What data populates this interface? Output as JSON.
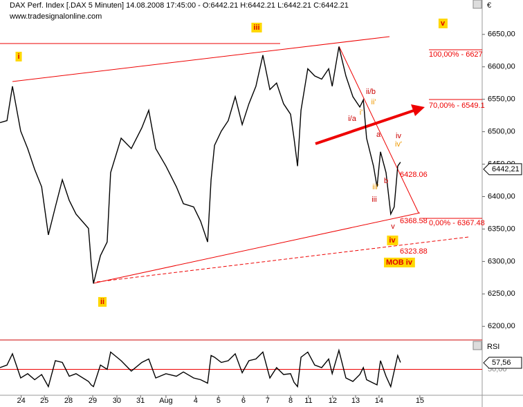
{
  "header": {
    "title": "DAX Perf. Index [.DAX  5 Minuten] 14.08.2008 17:45:00 - O:6442.21 H:6442.21 L:6442.21 C:6442.21",
    "source": "www.tradesignalonline.com",
    "currency": "€"
  },
  "chart_data": [
    {
      "type": "line",
      "color": "#000000",
      "series": [
        {
          "name": "DAX",
          "color": "#000000",
          "x": [
            -0.85,
            -0.57,
            -0.35,
            -0.02,
            0.26,
            0.54,
            0.82,
            1.09,
            1.37,
            1.65,
            1.93,
            2.2,
            2.7,
            2.81,
            2.9,
            3.18,
            3.45,
            3.59,
            4.01,
            4.42,
            4.84,
            5.12,
            5.4,
            5.81,
            6.23,
            6.51,
            6.92,
            7.2,
            7.48,
            7.62,
            7.76,
            8.03,
            8.31,
            8.59,
            8.87,
            9.14,
            9.42,
            9.7,
            9.98,
            10.25,
            10.53,
            10.81,
            10.95,
            11.09,
            11.23,
            11.5,
            11.78,
            12.06,
            12.34,
            12.48,
            12.75,
            13.03,
            13.31,
            13.59,
            13.73,
            13.86,
            14.14,
            14.28,
            14.42,
            14.64,
            14.83,
            14.97,
            15.11,
            15.22
          ],
          "values": [
            6514,
            6517,
            6570,
            6501,
            6474,
            6442,
            6415,
            6341,
            6384,
            6426,
            6394,
            6373,
            6351,
            6298,
            6266,
            6309,
            6330,
            6437,
            6490,
            6474,
            6506,
            6533,
            6474,
            6447,
            6415,
            6389,
            6384,
            6362,
            6330,
            6426,
            6479,
            6501,
            6517,
            6554,
            6511,
            6543,
            6570,
            6618,
            6565,
            6575,
            6543,
            6527,
            6490,
            6447,
            6533,
            6597,
            6586,
            6581,
            6597,
            6570,
            6631,
            6586,
            6554,
            6538,
            6549,
            6490,
            6447,
            6415,
            6469,
            6437,
            6373,
            6384,
            6447,
            6453
          ]
        }
      ],
      "xlim": [
        -0.85,
        18.5
      ],
      "ylim": [
        6179,
        6703
      ],
      "xticks": [
        {
          "value": 0,
          "label": "24"
        },
        {
          "value": 0.93,
          "label": "25"
        },
        {
          "value": 1.9,
          "label": "28"
        },
        {
          "value": 2.87,
          "label": "29"
        },
        {
          "value": 3.84,
          "label": "30"
        },
        {
          "value": 4.79,
          "label": "31"
        },
        {
          "value": 5.81,
          "label": "Aug"
        },
        {
          "value": 7.0,
          "label": "4"
        },
        {
          "value": 7.92,
          "label": "5"
        },
        {
          "value": 8.92,
          "label": "6"
        },
        {
          "value": 9.89,
          "label": "7"
        },
        {
          "value": 10.81,
          "label": "8"
        },
        {
          "value": 11.53,
          "label": "11"
        },
        {
          "value": 12.5,
          "label": "12"
        },
        {
          "value": 13.42,
          "label": "13"
        },
        {
          "value": 14.36,
          "label": "14"
        },
        {
          "value": 16.0,
          "label": "15"
        }
      ],
      "yticks": [
        {
          "value": 6200,
          "label": "6200,00"
        },
        {
          "value": 6250,
          "label": "6250,00"
        },
        {
          "value": 6300,
          "label": "6300,00"
        },
        {
          "value": 6350,
          "label": "6350,00"
        },
        {
          "value": 6400,
          "label": "6400,00"
        },
        {
          "value": 6450,
          "label": "6450,00"
        },
        {
          "value": 6500,
          "label": "6500,00"
        },
        {
          "value": 6550,
          "label": "6550,00"
        },
        {
          "value": 6600,
          "label": "6600,00"
        },
        {
          "value": 6650,
          "label": "6650,00"
        }
      ],
      "last": {
        "value": 6442.21,
        "label": "6442,21"
      },
      "annotations": [
        "i",
        "ii",
        "iii",
        "iv",
        "v",
        "MOB iv",
        "i/a",
        "ii/b",
        "a",
        "b",
        "iii",
        "iv",
        "v",
        "i'",
        "ii'",
        "iii'",
        "iv'",
        "6428.06",
        "6368.58",
        "6323.88",
        "100,00% - 6627",
        "70,00% - 6549.1",
        "0,00% - 6367.48"
      ]
    },
    {
      "type": "line",
      "title": "RSI",
      "color": "#000000",
      "series": [
        {
          "name": "RSI",
          "color": "#000000",
          "values": [
            52,
            55,
            68,
            40,
            45,
            38,
            44,
            30,
            60,
            58,
            42,
            45,
            36,
            32,
            30,
            55,
            50,
            70,
            60,
            48,
            58,
            62,
            40,
            45,
            42,
            47,
            40,
            38,
            34,
            66,
            64,
            58,
            60,
            68,
            46,
            60,
            62,
            70,
            40,
            52,
            44,
            45,
            35,
            30,
            64,
            70,
            55,
            52,
            62,
            45,
            72,
            40,
            36,
            44,
            52,
            38,
            34,
            32,
            60,
            42,
            30,
            48,
            66,
            58
          ]
        }
      ],
      "ylim": [
        20,
        80
      ],
      "yticks": [
        {
          "value": 50,
          "label": "50,00"
        }
      ],
      "last": {
        "value": 57.56,
        "label": "57,56"
      }
    }
  ]
}
